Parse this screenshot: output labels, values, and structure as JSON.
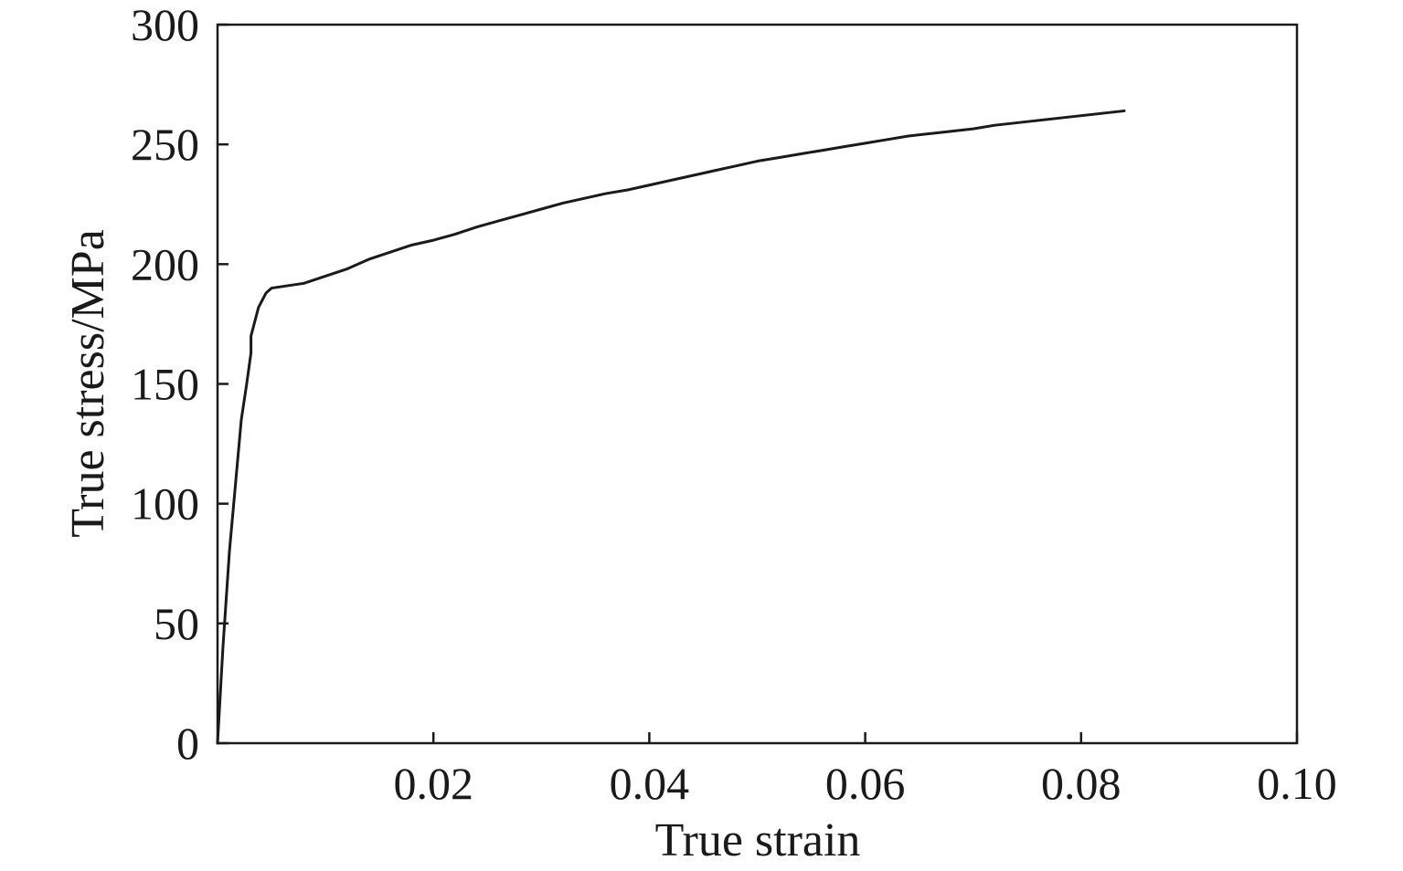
{
  "chart_data": {
    "type": "line",
    "title": "",
    "xlabel": "True strain",
    "ylabel": "True stress/MPa",
    "xlim": [
      0,
      0.1
    ],
    "ylim": [
      0,
      300
    ],
    "x_ticks": [
      0.02,
      0.04,
      0.06,
      0.08,
      0.1
    ],
    "x_tick_labels": [
      "0.02",
      "0.04",
      "0.06",
      "0.08",
      "0.10"
    ],
    "y_ticks": [
      0,
      50,
      100,
      150,
      200,
      250,
      300
    ],
    "y_tick_labels": [
      "0",
      "50",
      "100",
      "150",
      "200",
      "250",
      "300"
    ],
    "grid": false,
    "legend": "none",
    "line_color": "#1a1a1a",
    "series": [
      {
        "x": [
          0.0,
          0.0005,
          0.0011,
          0.0017,
          0.0022,
          0.0027,
          0.0031,
          0.0031,
          0.0038,
          0.0045,
          0.005,
          0.0065,
          0.008,
          0.01,
          0.012,
          0.014,
          0.016,
          0.018,
          0.02,
          0.022,
          0.024,
          0.026,
          0.028,
          0.03,
          0.032,
          0.034,
          0.036,
          0.038,
          0.04,
          0.042,
          0.044,
          0.046,
          0.048,
          0.05,
          0.052,
          0.054,
          0.056,
          0.058,
          0.06,
          0.062,
          0.064,
          0.066,
          0.068,
          0.07,
          0.072,
          0.074,
          0.076,
          0.078,
          0.08,
          0.082,
          0.084
        ],
        "y": [
          0,
          40,
          80,
          110,
          135,
          150,
          163,
          170,
          182,
          188,
          190,
          191,
          192,
          195,
          198,
          202,
          205,
          208,
          210,
          212.5,
          215.5,
          218,
          220.5,
          223,
          225.5,
          227.5,
          229.5,
          231,
          233,
          235,
          237,
          239,
          241,
          243,
          244.5,
          246,
          247.5,
          249,
          250.5,
          252,
          253.5,
          254.5,
          255.5,
          256.5,
          258,
          259,
          260,
          261,
          262,
          263,
          264
        ]
      }
    ]
  }
}
